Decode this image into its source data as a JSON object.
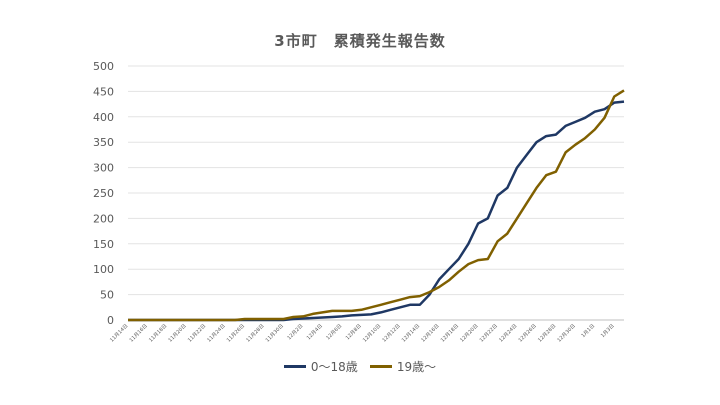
{
  "chart_data": {
    "type": "line",
    "title": "3市町　累積発生報告数",
    "xlabel": "",
    "ylabel": "",
    "ylim": [
      0,
      500
    ],
    "yticks": [
      0,
      50,
      100,
      150,
      200,
      250,
      300,
      350,
      400,
      450,
      500
    ],
    "grid": true,
    "legend": "bottom",
    "x": [
      "11月14日",
      "11月15日",
      "11月16日",
      "11月17日",
      "11月18日",
      "11月19日",
      "11月20日",
      "11月21日",
      "11月22日",
      "11月23日",
      "11月24日",
      "11月25日",
      "11月26日",
      "11月27日",
      "11月28日",
      "11月29日",
      "11月30日",
      "12月1日",
      "12月2日",
      "12月3日",
      "12月4日",
      "12月5日",
      "12月6日",
      "12月7日",
      "12月8日",
      "12月9日",
      "12月10日",
      "12月11日",
      "12月12日",
      "12月13日",
      "12月14日",
      "12月15日",
      "12月16日",
      "12月17日",
      "12月18日",
      "12月19日",
      "12月20日",
      "12月21日",
      "12月22日",
      "12月23日",
      "12月24日",
      "12月25日",
      "12月26日",
      "12月27日",
      "12月28日",
      "12月29日",
      "12月30日",
      "12月31日",
      "1月1日",
      "1月2日",
      "1月3日",
      "1月4日"
    ],
    "xtick_labels": [
      "11月14日",
      "11月16日",
      "11月18日",
      "11月20日",
      "11月22日",
      "11月24日",
      "11月26日",
      "11月28日",
      "11月30日",
      "12月2日",
      "12月4日",
      "12月6日",
      "12月8日",
      "12月10日",
      "12月12日",
      "12月14日",
      "12月16日",
      "12月18日",
      "12月20日",
      "12月22日",
      "12月24日",
      "12月26日",
      "12月28日",
      "12月30日",
      "1月1日",
      "1月3日"
    ],
    "series": [
      {
        "name": "0～18歳",
        "color": "#1f3864",
        "values": [
          0,
          0,
          0,
          0,
          0,
          0,
          0,
          0,
          0,
          0,
          0,
          0,
          0,
          0,
          0,
          0,
          0,
          2,
          3,
          4,
          5,
          6,
          7,
          9,
          10,
          11,
          15,
          20,
          25,
          30,
          30,
          50,
          80,
          100,
          120,
          150,
          190,
          200,
          245,
          260,
          300,
          325,
          350,
          362,
          365,
          382,
          390,
          398,
          410,
          415,
          428,
          430
        ]
      },
      {
        "name": "19歳～",
        "color": "#806000",
        "values": [
          0,
          0,
          0,
          0,
          0,
          0,
          0,
          0,
          0,
          0,
          0,
          0,
          2,
          2,
          2,
          2,
          2,
          6,
          7,
          12,
          15,
          18,
          18,
          18,
          20,
          25,
          30,
          35,
          40,
          45,
          47,
          55,
          65,
          78,
          95,
          110,
          118,
          120,
          155,
          170,
          200,
          230,
          260,
          285,
          292,
          330,
          345,
          358,
          375,
          398,
          440,
          452
        ]
      }
    ]
  }
}
